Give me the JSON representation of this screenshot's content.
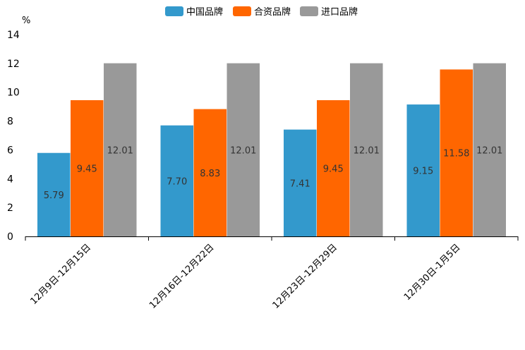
{
  "chart_data": {
    "type": "bar",
    "unit": "%",
    "categories": [
      "12月9日-12月15日",
      "12月16日-12月22日",
      "12月23日-12月29日",
      "12月30日-1月5日"
    ],
    "series": [
      {
        "name": "中国品牌",
        "color": "#3399cc",
        "values": [
          5.79,
          7.7,
          7.41,
          9.15
        ],
        "labels": [
          "5.79",
          "7.70",
          "7.41",
          "9.15"
        ]
      },
      {
        "name": "合资品牌",
        "color": "#ff6600",
        "values": [
          9.45,
          8.83,
          9.45,
          11.58
        ],
        "labels": [
          "9.45",
          "8.83",
          "9.45",
          "11.58"
        ]
      },
      {
        "name": "进口品牌",
        "color": "#999999",
        "values": [
          12.01,
          12.01,
          12.01,
          12.01
        ],
        "labels": [
          "12.01",
          "12.01",
          "12.01",
          "12.01"
        ]
      }
    ],
    "ylim": [
      0,
      14
    ],
    "yticks": [
      "0",
      "2",
      "4",
      "6",
      "8",
      "10",
      "12",
      "14"
    ],
    "legend_position": "top-center",
    "grid": false
  }
}
